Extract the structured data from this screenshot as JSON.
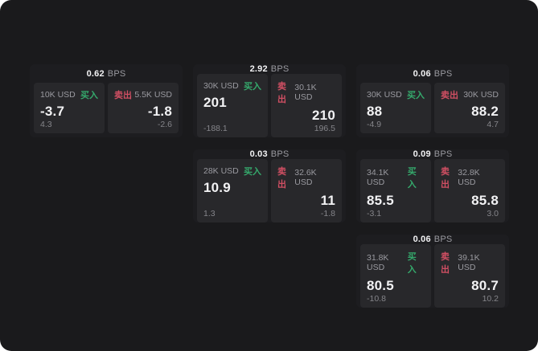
{
  "window": {
    "page_background": "#ffffff",
    "background": "#1a1a1c"
  },
  "colors": {
    "buy_green": "#35a96c",
    "sell_red": "#d04f63",
    "card_bg": "#1d1d20",
    "panel_bg": "#28282b",
    "text_primary": "#f2f2f4",
    "text_secondary": "#9a9aa0",
    "text_muted": "#85858a"
  },
  "labels": {
    "bps_unit": "BPS",
    "buy": "买入",
    "sell": "卖出"
  },
  "cards": [
    {
      "bps": "0.62",
      "buy_size": "10K USD",
      "buy_price": "-3.7",
      "buy_delta": "4.3",
      "sell_size": "5.5K USD",
      "sell_price": "-1.8",
      "sell_delta": "-2.6"
    },
    {
      "bps": "2.92",
      "buy_size": "30K USD",
      "buy_price": "201",
      "buy_delta": "-188.1",
      "sell_size": "30.1K USD",
      "sell_price": "210",
      "sell_delta": "196.5"
    },
    {
      "bps": "0.06",
      "buy_size": "30K USD",
      "buy_price": "88",
      "buy_delta": "-4.9",
      "sell_size": "30K USD",
      "sell_price": "88.2",
      "sell_delta": "4.7"
    },
    {
      "bps": "0.03",
      "buy_size": "28K USD",
      "buy_price": "10.9",
      "buy_delta": "1.3",
      "sell_size": "32.6K USD",
      "sell_price": "11",
      "sell_delta": "-1.8"
    },
    {
      "bps": "0.09",
      "buy_size": "34.1K USD",
      "buy_price": "85.5",
      "buy_delta": "-3.1",
      "sell_size": "32.8K USD",
      "sell_price": "85.8",
      "sell_delta": "3.0"
    },
    {
      "bps": "0.06",
      "buy_size": "31.8K USD",
      "buy_price": "80.5",
      "buy_delta": "-10.8",
      "sell_size": "39.1K USD",
      "sell_price": "80.7",
      "sell_delta": "10.2"
    }
  ]
}
